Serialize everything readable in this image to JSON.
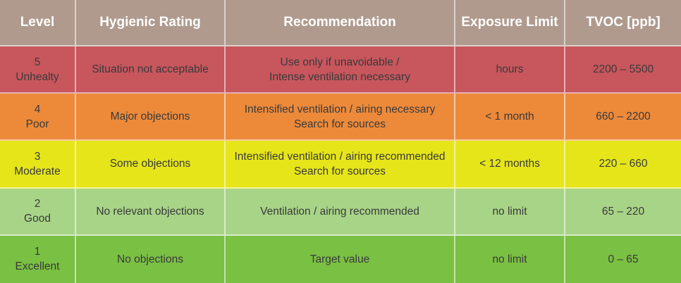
{
  "headers": {
    "level": "Level",
    "hygienic_rating": "Hygienic Rating",
    "recommendation": "Recommendation",
    "exposure_limit": "Exposure Limit",
    "tvoc": "TVOC [ppb]"
  },
  "rows": [
    {
      "level_number": "5",
      "level_name": "Unhealty",
      "rating": "Situation not acceptable",
      "recommendation_line1": "Use only if unavoidable /",
      "recommendation_line2": "Intense ventilation necessary",
      "exposure_limit": "hours",
      "tvoc": "2200 – 5500",
      "color": "#c8565d"
    },
    {
      "level_number": "4",
      "level_name": "Poor",
      "rating": "Major objections",
      "recommendation_line1": "Intensified ventilation / airing necessary",
      "recommendation_line2": "Search for sources",
      "exposure_limit": "< 1 month",
      "tvoc": "660 – 2200",
      "color": "#ec8a3a"
    },
    {
      "level_number": "3",
      "level_name": "Moderate",
      "rating": "Some objections",
      "recommendation_line1": "Intensified ventilation / airing recommended",
      "recommendation_line2": "Search for sources",
      "exposure_limit": "< 12 months",
      "tvoc": "220 – 660",
      "color": "#e6e51a"
    },
    {
      "level_number": "2",
      "level_name": "Good",
      "rating": "No relevant objections",
      "recommendation_line1": "Ventilation / airing recommended",
      "recommendation_line2": "",
      "exposure_limit": "no limit",
      "tvoc": "65 – 220",
      "color": "#a8d487"
    },
    {
      "level_number": "1",
      "level_name": "Excellent",
      "rating": "No objections",
      "recommendation_line1": "Target value",
      "recommendation_line2": "",
      "exposure_limit": "no limit",
      "tvoc": "0 – 65",
      "color": "#7ac043"
    }
  ],
  "header_color": "#b09a8e"
}
